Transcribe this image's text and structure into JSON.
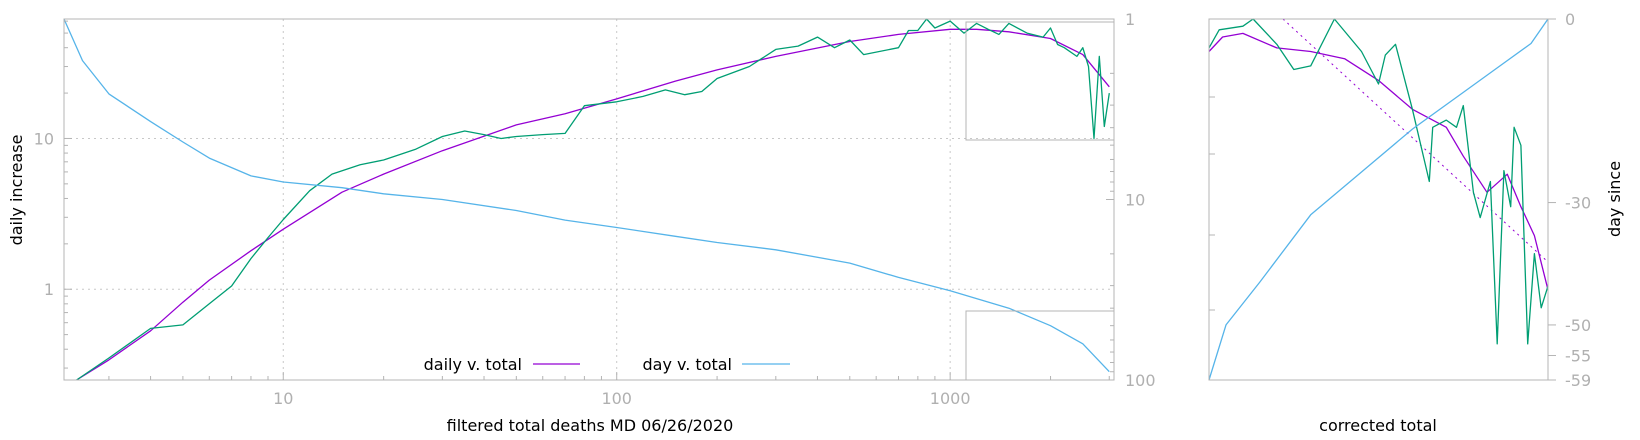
{
  "colors": {
    "daily_smooth": "#9400d3",
    "daily_raw": "#009e73",
    "day": "#56b4e9",
    "frame": "#b4b4b4",
    "grid": "#c8c8c8",
    "tick_text": "#b0b0b0"
  },
  "chart_data": [
    {
      "type": "line",
      "xlabel": "filtered total deaths MD 06/26/2020",
      "ylabel": "daily increase",
      "y2label": "",
      "xscale": "log",
      "yscale": "log",
      "y2scale": "log-reversed",
      "xlim": [
        2.2,
        3100
      ],
      "ylim": [
        0.25,
        62
      ],
      "y2lim": [
        1,
        100
      ],
      "grid": true,
      "legend_position": "bottom-center",
      "x_ticks": [
        "10",
        "100",
        "1000"
      ],
      "y_ticks": [
        "1",
        "10"
      ],
      "y2_ticks": [
        "1",
        "10",
        "100"
      ],
      "series": [
        {
          "name": "daily v. total",
          "axis": "left",
          "color_key": "daily_smooth",
          "points": [
            [
              2.4,
              0.25
            ],
            [
              3,
              0.34
            ],
            [
              4,
              0.53
            ],
            [
              5,
              0.82
            ],
            [
              6,
              1.15
            ],
            [
              8,
              1.8
            ],
            [
              10,
              2.5
            ],
            [
              15,
              4.4
            ],
            [
              20,
              5.8
            ],
            [
              30,
              8.3
            ],
            [
              50,
              12.3
            ],
            [
              70,
              14.6
            ],
            [
              100,
              18.3
            ],
            [
              150,
              24
            ],
            [
              200,
              28.5
            ],
            [
              300,
              35
            ],
            [
              500,
              44
            ],
            [
              700,
              49
            ],
            [
              1000,
              53
            ],
            [
              1200,
              53
            ],
            [
              1500,
              51
            ],
            [
              2000,
              46
            ],
            [
              2500,
              36
            ],
            [
              3000,
              22
            ]
          ]
        },
        {
          "name": "",
          "axis": "left",
          "color_key": "daily_raw",
          "points": [
            [
              2.4,
              0.25
            ],
            [
              3,
              0.35
            ],
            [
              4,
              0.55
            ],
            [
              5,
              0.58
            ],
            [
              6,
              0.8
            ],
            [
              7,
              1.05
            ],
            [
              8,
              1.6
            ],
            [
              9,
              2.2
            ],
            [
              10,
              2.9
            ],
            [
              12,
              4.5
            ],
            [
              14,
              5.8
            ],
            [
              17,
              6.7
            ],
            [
              20,
              7.2
            ],
            [
              25,
              8.5
            ],
            [
              30,
              10.3
            ],
            [
              35,
              11.2
            ],
            [
              40,
              10.6
            ],
            [
              45,
              10
            ],
            [
              50,
              10.3
            ],
            [
              60,
              10.6
            ],
            [
              70,
              10.8
            ],
            [
              80,
              16.5
            ],
            [
              100,
              17.5
            ],
            [
              120,
              19
            ],
            [
              140,
              21
            ],
            [
              160,
              19.5
            ],
            [
              180,
              20.5
            ],
            [
              200,
              25
            ],
            [
              250,
              30
            ],
            [
              300,
              39
            ],
            [
              350,
              41
            ],
            [
              400,
              47
            ],
            [
              450,
              40
            ],
            [
              500,
              45
            ],
            [
              550,
              36
            ],
            [
              700,
              40
            ],
            [
              750,
              52
            ],
            [
              800,
              52
            ],
            [
              850,
              62
            ],
            [
              900,
              54
            ],
            [
              1000,
              60
            ],
            [
              1100,
              50
            ],
            [
              1200,
              58
            ],
            [
              1300,
              53
            ],
            [
              1400,
              49
            ],
            [
              1500,
              58
            ],
            [
              1700,
              50
            ],
            [
              1900,
              47
            ],
            [
              2000,
              54
            ],
            [
              2100,
              42
            ],
            [
              2200,
              40
            ],
            [
              2400,
              35
            ],
            [
              2500,
              40
            ],
            [
              2600,
              30
            ],
            [
              2700,
              10
            ],
            [
              2800,
              35
            ],
            [
              2900,
              12
            ],
            [
              3000,
              20
            ]
          ]
        },
        {
          "name": "day v. total",
          "axis": "right",
          "color_key": "day",
          "points": [
            [
              2.2,
              1
            ],
            [
              2.5,
              1.7
            ],
            [
              3,
              2.6
            ],
            [
              4,
              3.7
            ],
            [
              5,
              4.8
            ],
            [
              6,
              5.9
            ],
            [
              8,
              7.4
            ],
            [
              10,
              8
            ],
            [
              15,
              8.6
            ],
            [
              20,
              9.3
            ],
            [
              30,
              10
            ],
            [
              50,
              11.5
            ],
            [
              70,
              13
            ],
            [
              100,
              14.3
            ],
            [
              150,
              16
            ],
            [
              200,
              17.3
            ],
            [
              300,
              19
            ],
            [
              500,
              22.5
            ],
            [
              700,
              27
            ],
            [
              1000,
              32
            ],
            [
              1500,
              40
            ],
            [
              2000,
              50
            ],
            [
              2500,
              63
            ],
            [
              3000,
              90
            ]
          ]
        }
      ],
      "annotations": [
        "inset-frame-top-right",
        "inset-frame-bottom-right"
      ]
    },
    {
      "type": "line",
      "xlabel": "corrected total",
      "ylabel": "",
      "y2label": "day since",
      "grid": false,
      "y2_ticks": [
        "0",
        "-30",
        "-50",
        "-55",
        "-59"
      ],
      "series": [
        {
          "name": "",
          "axis": "left",
          "color_key": "daily_smooth",
          "points": [
            [
              0,
              0.09
            ],
            [
              0.04,
              0.05
            ],
            [
              0.1,
              0.04
            ],
            [
              0.2,
              0.08
            ],
            [
              0.3,
              0.09
            ],
            [
              0.4,
              0.11
            ],
            [
              0.5,
              0.17
            ],
            [
              0.6,
              0.25
            ],
            [
              0.7,
              0.3
            ],
            [
              0.75,
              0.38
            ],
            [
              0.82,
              0.48
            ],
            [
              0.88,
              0.43
            ],
            [
              0.92,
              0.52
            ],
            [
              0.96,
              0.6
            ],
            [
              1.0,
              0.75
            ]
          ]
        },
        {
          "name": "",
          "axis": "left",
          "color_key": "daily_raw",
          "points": [
            [
              0,
              0.08
            ],
            [
              0.03,
              0.03
            ],
            [
              0.1,
              0.02
            ],
            [
              0.13,
              0.0
            ],
            [
              0.2,
              0.07
            ],
            [
              0.25,
              0.14
            ],
            [
              0.3,
              0.13
            ],
            [
              0.37,
              0.0
            ],
            [
              0.45,
              0.09
            ],
            [
              0.5,
              0.18
            ],
            [
              0.52,
              0.1
            ],
            [
              0.55,
              0.07
            ],
            [
              0.6,
              0.25
            ],
            [
              0.65,
              0.45
            ],
            [
              0.66,
              0.3
            ],
            [
              0.7,
              0.28
            ],
            [
              0.73,
              0.3
            ],
            [
              0.75,
              0.24
            ],
            [
              0.78,
              0.48
            ],
            [
              0.8,
              0.55
            ],
            [
              0.83,
              0.45
            ],
            [
              0.85,
              0.9
            ],
            [
              0.87,
              0.42
            ],
            [
              0.89,
              0.52
            ],
            [
              0.9,
              0.3
            ],
            [
              0.92,
              0.35
            ],
            [
              0.94,
              0.9
            ],
            [
              0.96,
              0.65
            ],
            [
              0.98,
              0.8
            ],
            [
              1.0,
              0.74
            ]
          ]
        },
        {
          "name": "",
          "axis": "right",
          "color_key": "day",
          "points": [
            [
              0,
              -59
            ],
            [
              0.05,
              -50
            ],
            [
              0.15,
              -43
            ],
            [
              0.3,
              -32
            ],
            [
              0.45,
              -25
            ],
            [
              0.6,
              -18
            ],
            [
              0.75,
              -12
            ],
            [
              0.85,
              -8
            ],
            [
              0.95,
              -4
            ],
            [
              1.0,
              0
            ]
          ]
        }
      ]
    }
  ]
}
